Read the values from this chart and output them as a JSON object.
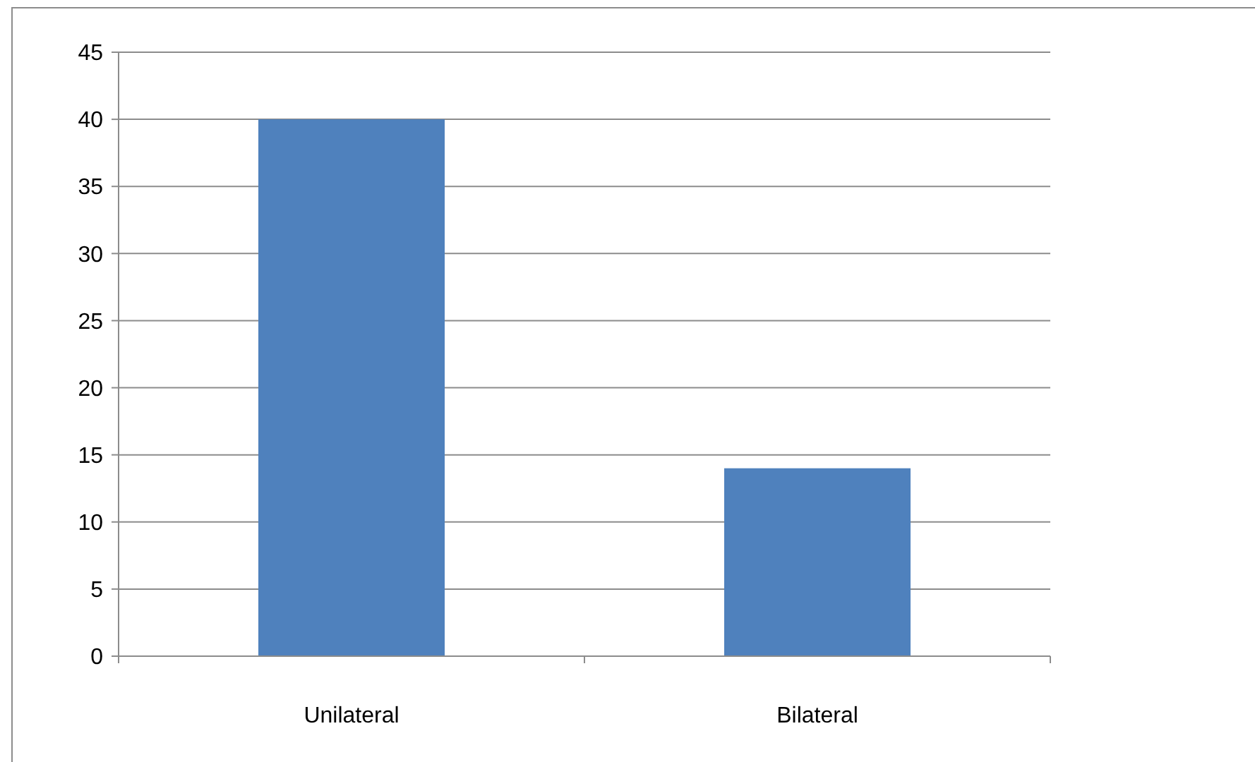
{
  "chart_data": {
    "type": "bar",
    "categories": [
      "Unilateral",
      "Bilateral"
    ],
    "values": [
      40,
      14
    ],
    "color": "#4f81bd",
    "ylim": [
      0,
      45
    ],
    "yticks": [
      0,
      5,
      10,
      15,
      20,
      25,
      30,
      35,
      40,
      45
    ],
    "grid": "y"
  }
}
